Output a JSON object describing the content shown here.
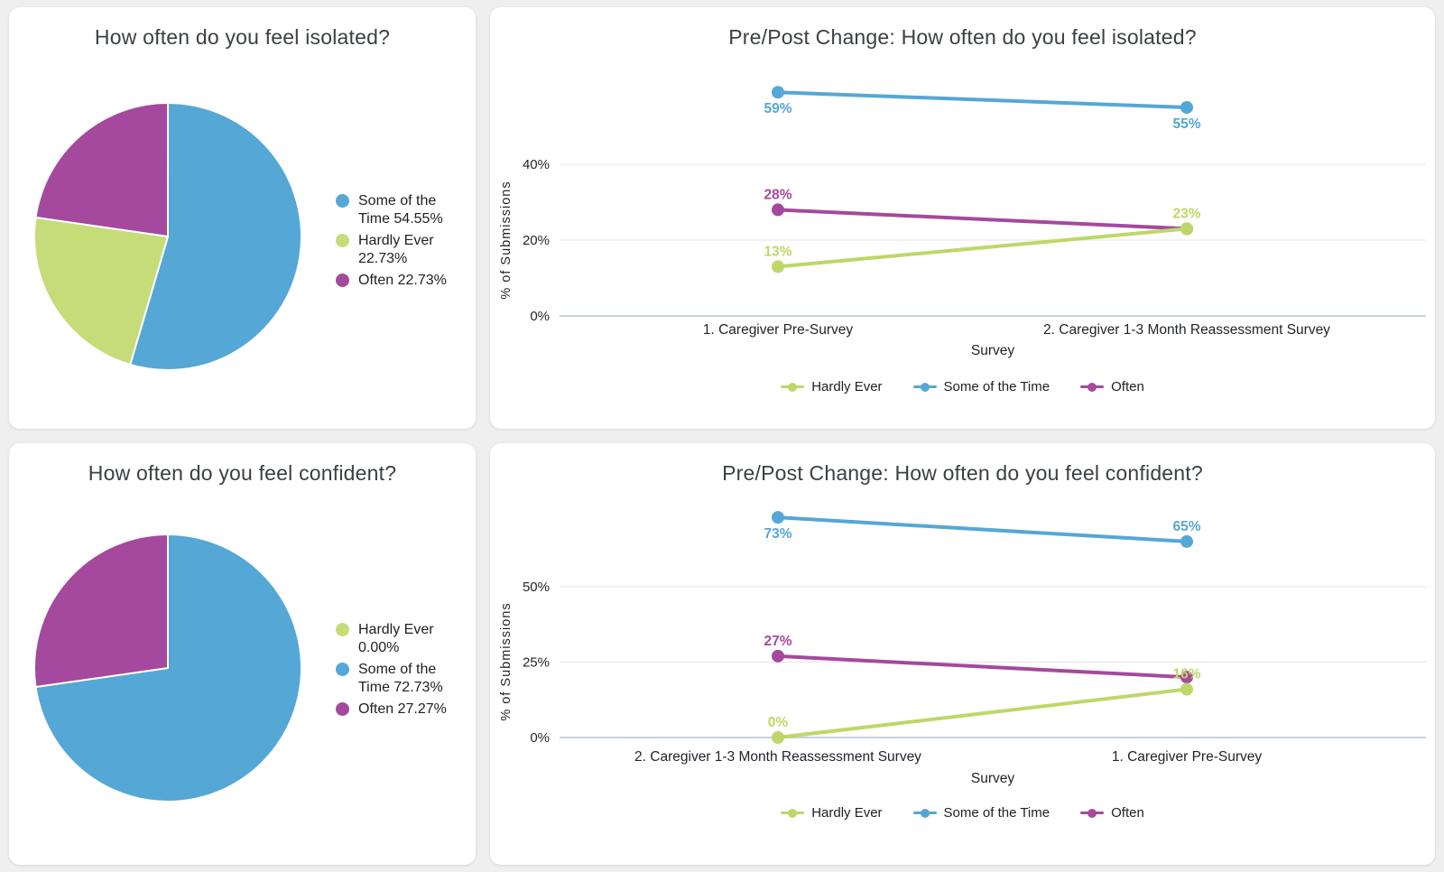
{
  "page": {
    "background_color": "#efeff0",
    "card_color": "#ffffff"
  },
  "palette": {
    "blue": "#55a7d5",
    "green": "#bed768",
    "pie_green": "#c5dc78",
    "magenta": "#a4499d",
    "title_text": "#3c4043",
    "axis_text": "#1f2329",
    "gridline": "#e9e9ec",
    "baseline": "#c9cfe8"
  },
  "chart_data": [
    {
      "type": "pie",
      "title": "How often do you feel isolated?",
      "labels": [
        "Some of the Time",
        "Hardly Ever",
        "Often"
      ],
      "values": [
        54.55,
        22.73,
        22.73
      ],
      "colors": [
        "#55a7d5",
        "#c5dc78",
        "#a4499d"
      ],
      "legend_labels": [
        "Some of the Time 54.55%",
        "Hardly Ever 22.73%",
        "Often 22.73%"
      ],
      "legend_position": "right",
      "start_angle_deg": 0,
      "direction": "clockwise"
    },
    {
      "type": "line",
      "title": "Pre/Post Change: How often do you feel isolated?",
      "xlabel": "Survey",
      "ylabel": "% of Submissions",
      "categories": [
        "1. Caregiver Pre-Survey",
        "2. Caregiver 1-3 Month Reassessment Survey"
      ],
      "yticks": [
        0,
        20,
        40
      ],
      "ytick_labels": [
        "0%",
        "20%",
        "40%"
      ],
      "ylim": [
        0,
        65
      ],
      "grid": true,
      "legend_position": "bottom",
      "legend": [
        "Hardly Ever",
        "Some of the Time",
        "Often"
      ],
      "series": [
        {
          "name": "Hardly Ever",
          "color": "#bed768",
          "values": [
            13,
            23
          ],
          "point_labels": [
            "13%",
            "23%"
          ],
          "label_positions": [
            "above",
            "above"
          ]
        },
        {
          "name": "Some of the Time",
          "color": "#55a7d5",
          "values": [
            59,
            55
          ],
          "point_labels": [
            "59%",
            "55%"
          ],
          "label_positions": [
            "below",
            "below"
          ]
        },
        {
          "name": "Often",
          "color": "#a4499d",
          "values": [
            28,
            23
          ],
          "point_labels": [
            "28%",
            ""
          ],
          "label_positions": [
            "above",
            "above"
          ]
        }
      ]
    },
    {
      "type": "pie",
      "title": "How often do you feel confident?",
      "labels": [
        "Hardly Ever",
        "Some of the Time",
        "Often"
      ],
      "values": [
        0.0,
        72.73,
        27.27
      ],
      "colors": [
        "#c5dc78",
        "#55a7d5",
        "#a4499d"
      ],
      "legend_labels": [
        "Hardly Ever 0.00%",
        "Some of the Time 72.73%",
        "Often 27.27%"
      ],
      "legend_position": "right",
      "start_angle_deg": 0,
      "direction": "clockwise"
    },
    {
      "type": "line",
      "title": "Pre/Post Change: How often do you feel confident?",
      "xlabel": "Survey",
      "ylabel": "% of Submissions",
      "categories": [
        "2. Caregiver 1-3 Month Reassessment Survey",
        "1. Caregiver Pre-Survey"
      ],
      "yticks": [
        0,
        25,
        50
      ],
      "ytick_labels": [
        "0%",
        "25%",
        "50%"
      ],
      "ylim": [
        0,
        78
      ],
      "grid": true,
      "legend_position": "bottom",
      "legend": [
        "Hardly Ever",
        "Some of the Time",
        "Often"
      ],
      "series": [
        {
          "name": "Hardly Ever",
          "color": "#bed768",
          "values": [
            0,
            16
          ],
          "point_labels": [
            "0%",
            "16%"
          ],
          "label_positions": [
            "above",
            "above"
          ]
        },
        {
          "name": "Some of the Time",
          "color": "#55a7d5",
          "values": [
            73,
            65
          ],
          "point_labels": [
            "73%",
            "65%"
          ],
          "label_positions": [
            "below",
            "above"
          ]
        },
        {
          "name": "Often",
          "color": "#a4499d",
          "values": [
            27,
            20
          ],
          "point_labels": [
            "27%",
            ""
          ],
          "label_positions": [
            "above",
            "above"
          ]
        }
      ]
    }
  ]
}
